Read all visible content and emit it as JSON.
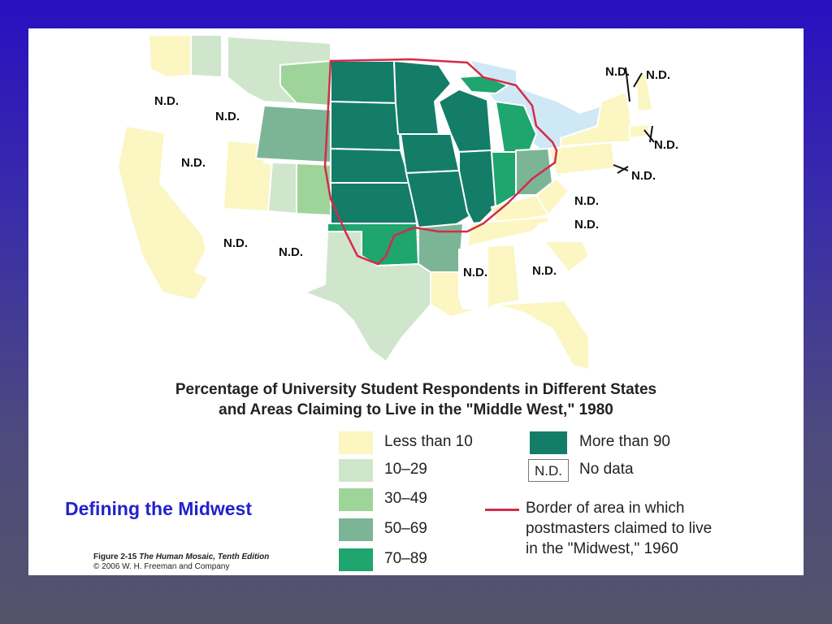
{
  "colors": {
    "background_top": "#2a0fc0",
    "background_bottom": "#55536a",
    "less_than_10": "#fbf6c2",
    "pct_10_29": "#cfe6cc",
    "pct_30_49": "#9ed49a",
    "pct_50_69": "#7cb596",
    "pct_70_89": "#1fa56e",
    "more_than_90": "#147d67",
    "no_data": "#ffffff",
    "border_1960": "#d42b4a",
    "water": "#cfe8f5",
    "subtitle": "#2222cc"
  },
  "map": {
    "title_line1": "Percentage of University Student Respondents in Different States",
    "title_line2": "and Areas Claiming to Live in the \"Middle West,\" 1980",
    "nd_label": "N.D.",
    "no_data_states": [
      "Oregon",
      "Idaho",
      "Nevada",
      "Arizona",
      "New Mexico",
      "Mississippi",
      "Georgia",
      "Virginia",
      "North Carolina",
      "Vermont",
      "Maine",
      "Massachusetts",
      "New Jersey"
    ]
  },
  "legend": {
    "items": [
      {
        "label": "Less than 10",
        "color_key": "less_than_10"
      },
      {
        "label": "10–29",
        "color_key": "pct_10_29"
      },
      {
        "label": "30–49",
        "color_key": "pct_30_49"
      },
      {
        "label": "50–69",
        "color_key": "pct_50_69"
      },
      {
        "label": "70–89",
        "color_key": "pct_70_89"
      },
      {
        "label": "More than 90",
        "color_key": "more_than_90"
      }
    ],
    "no_data_swatch": "N.D.",
    "no_data_label": "No data",
    "border_line1": "Border of area in which",
    "border_line2": "postmasters claimed to live",
    "border_line3": "in the \"Midwest,\" 1960"
  },
  "slide": {
    "subtitle": "Defining the Midwest",
    "figure_number": "Figure 2-15",
    "book_title": "The Human Mosaic, Tenth Edition",
    "copyright": "© 2006 W. H. Freeman and Company"
  }
}
